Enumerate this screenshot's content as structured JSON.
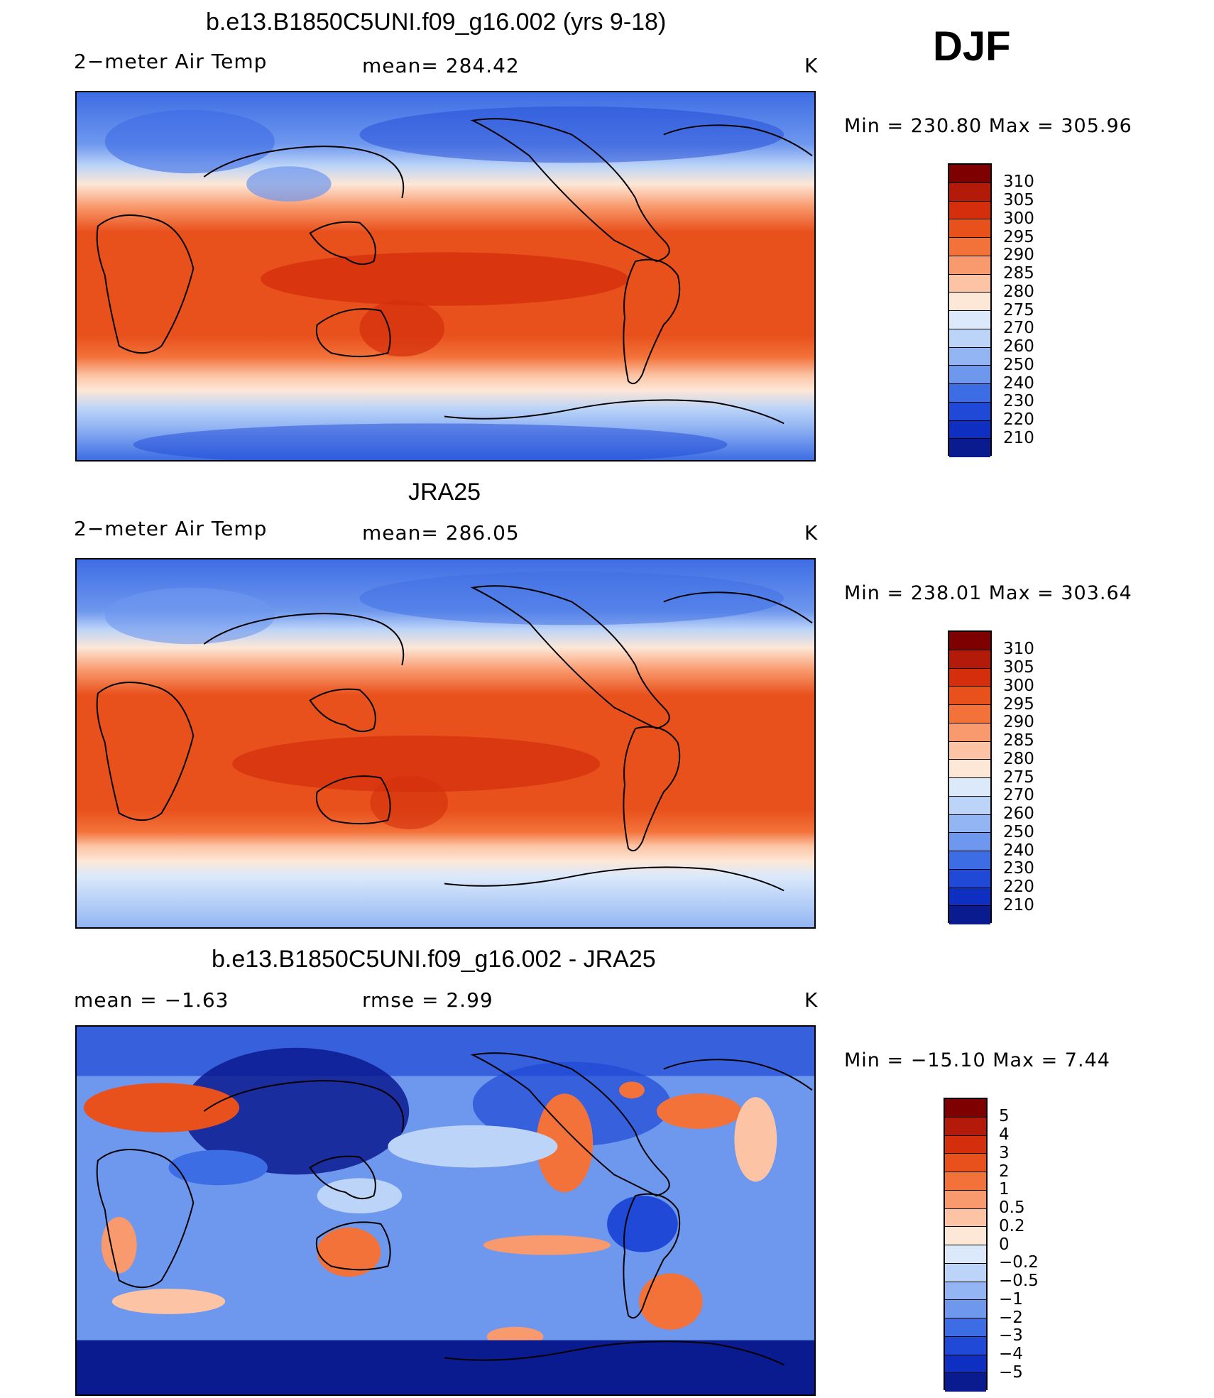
{
  "header": {
    "season": "DJF"
  },
  "panels": [
    {
      "title": "b.e13.B1850C5UNI.f09_g16.002 (yrs 9-18)",
      "left_label": "2−meter Air Temp",
      "center_label": "mean=  284.42",
      "units": "K",
      "minmax": "Min  =  230.80  Max  =  305.96"
    },
    {
      "title": "JRA25",
      "left_label": "2−meter Air Temp",
      "center_label": "mean=  286.05",
      "units": "K",
      "minmax": "Min  =  238.01  Max  =  303.64"
    },
    {
      "title": "b.e13.B1850C5UNI.f09_g16.002 - JRA25",
      "left_label": "mean  =    −1.63",
      "center_label": "rmse  =     2.99",
      "units": "K",
      "minmax": "Min  =  −15.10  Max  =      7.44"
    }
  ],
  "colorbars": {
    "temperature": {
      "labels": [
        "310",
        "305",
        "300",
        "295",
        "290",
        "285",
        "280",
        "275",
        "270",
        "260",
        "250",
        "240",
        "230",
        "220",
        "210"
      ],
      "colors": [
        "#7f0000",
        "#b31a0a",
        "#d42e0c",
        "#e8501c",
        "#f3723a",
        "#f99a6e",
        "#fcc4a5",
        "#fde7d6",
        "#dce9fb",
        "#bcd4f8",
        "#93b5f3",
        "#6e97ee",
        "#3d6de4",
        "#1f49d6",
        "#0f2ec2",
        "#0a1a8f"
      ]
    },
    "difference": {
      "labels": [
        "5",
        "4",
        "3",
        "2",
        "1",
        "0.5",
        "0.2",
        "0",
        "−0.2",
        "−0.5",
        "−1",
        "−2",
        "−3",
        "−4",
        "−5"
      ],
      "colors": [
        "#7f0000",
        "#b31a0a",
        "#d42e0c",
        "#e8501c",
        "#f3723a",
        "#f99a6e",
        "#fcc4a5",
        "#fde7d6",
        "#dce9fb",
        "#bcd4f8",
        "#93b5f3",
        "#6e97ee",
        "#3d6de4",
        "#1f49d6",
        "#0f2ec2",
        "#0a1a8f"
      ]
    }
  }
}
